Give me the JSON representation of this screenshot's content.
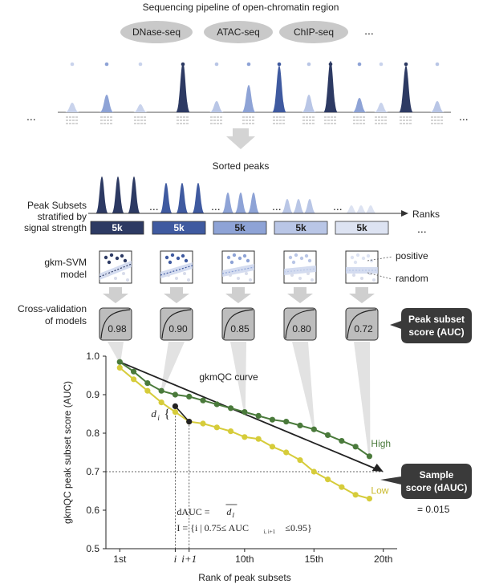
{
  "pipeline": {
    "title": "Sequencing pipeline of open-chromatin region",
    "methods": [
      "DNase-seq",
      "ATAC-seq",
      "ChIP-seq"
    ],
    "more": "...",
    "left_ellipsis": "...",
    "right_ellipsis": "..."
  },
  "sorted": {
    "title": "Sorted peaks",
    "axis_label": "Ranks",
    "more": "..."
  },
  "rows": {
    "subsets_label": [
      "Peak Subsets",
      "stratified by",
      "signal strength"
    ],
    "model_label": [
      "gkm-SVM",
      "model"
    ],
    "cv_label": [
      "Cross-validation",
      "of models"
    ],
    "positive": "positive",
    "random": "random",
    "more": "..."
  },
  "subsets": [
    {
      "size": "5k",
      "color": "#2d3a63",
      "score": "0.98"
    },
    {
      "size": "5k",
      "color": "#3f5aa0",
      "score": "0.90"
    },
    {
      "size": "5k",
      "color": "#8ea3d6",
      "score": "0.85"
    },
    {
      "size": "5k",
      "color": "#b9c6e6",
      "score": "0.80"
    },
    {
      "size": "5k",
      "color": "#dde3f2",
      "score": "0.72"
    }
  ],
  "callouts": {
    "peak_score": [
      "Peak subset",
      "score (AUC)"
    ],
    "sample_score": [
      "Sample",
      "score (dAUC)"
    ],
    "sample_value": "= 0.015"
  },
  "chart_data": {
    "type": "line",
    "title": "gkmQC curve",
    "xlabel": "Rank of peak subsets",
    "ylabel": "gkmQC peak subset score (AUC)",
    "xlim": [
      0,
      21
    ],
    "ylim": [
      0.5,
      1.0
    ],
    "xticks": [
      {
        "x": 1,
        "label": "1st"
      },
      {
        "x": 5,
        "label": "i"
      },
      {
        "x": 6,
        "label": "i+1"
      },
      {
        "x": 10,
        "label": "10th"
      },
      {
        "x": 15,
        "label": "15th"
      },
      {
        "x": 20,
        "label": "20th"
      }
    ],
    "yticks": [
      "0.5",
      "0.6",
      "0.7",
      "0.8",
      "0.9",
      "1.0"
    ],
    "series": [
      {
        "name": "High",
        "color": "#4a7a3b",
        "x": [
          1,
          2,
          3,
          4,
          5,
          6,
          7,
          8,
          9,
          10,
          11,
          12,
          13,
          14,
          15,
          16,
          17,
          18,
          19
        ],
        "y": [
          0.985,
          0.96,
          0.93,
          0.91,
          0.9,
          0.895,
          0.885,
          0.875,
          0.865,
          0.855,
          0.845,
          0.835,
          0.83,
          0.82,
          0.81,
          0.795,
          0.78,
          0.765,
          0.74
        ]
      },
      {
        "name": "Low",
        "color": "#d6cc3a",
        "x": [
          1,
          2,
          3,
          4,
          5,
          6,
          7,
          8,
          9,
          10,
          11,
          12,
          13,
          14,
          15,
          16,
          17,
          18,
          19
        ],
        "y": [
          0.97,
          0.94,
          0.91,
          0.88,
          0.855,
          0.83,
          0.825,
          0.815,
          0.805,
          0.79,
          0.785,
          0.765,
          0.75,
          0.73,
          0.7,
          0.68,
          0.66,
          0.64,
          0.63
        ]
      }
    ],
    "reference_line": {
      "x": [
        1,
        20
      ],
      "y": [
        0.985,
        0.7
      ]
    },
    "reference_level": 0.7,
    "highlight": {
      "x": [
        5,
        6
      ],
      "y": [
        0.87,
        0.83
      ],
      "label": "d",
      "sub": "i"
    },
    "formula": {
      "dauc": "dAUC =",
      "dbar": "d",
      "sub": "I",
      "set": "I = {i | 0.75≤ AUC",
      "set_sub": "i, i+1",
      "set_end": "≤0.95}"
    },
    "series_labels": {
      "high": "High",
      "low": "Low"
    }
  }
}
